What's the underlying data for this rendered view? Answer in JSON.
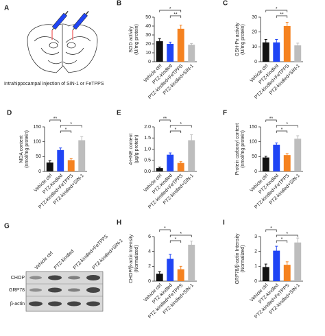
{
  "panel_a": {
    "letter": "A",
    "caption": "Intrahippocampal injection of SIN-1 or FeTPPS"
  },
  "panel_g": {
    "letter": "G",
    "lanes": [
      "Vehicle ctrl",
      "PTZ-kindled",
      "PTZ-kindled+FeTPPS",
      "PTZ-kindled+SIN-1"
    ],
    "rows": [
      "CHOP",
      "GRP78",
      "β-actin"
    ]
  },
  "chart_data": [
    {
      "type": "bar",
      "letter": "B",
      "y_label": [
        "SOD activity",
        "(U/mg protein)"
      ],
      "categories": [
        "Vehicle ctrl",
        "PTZ-kindled",
        "PTZ-kindled+FeTPPS",
        "PTZ-kindled+SIN-1"
      ],
      "values": [
        23,
        20,
        37,
        19
      ],
      "errors": [
        3,
        2,
        4,
        1.5
      ],
      "colors": [
        "#111111",
        "#2045f5",
        "#f58220",
        "#bdbdbd"
      ],
      "ylim": [
        0,
        50
      ],
      "yticks": [
        0,
        10,
        20,
        30,
        40,
        50
      ],
      "brackets": [
        {
          "label": "*",
          "from": 0,
          "to": 2
        },
        {
          "label": "**",
          "from": 1,
          "to": 2
        }
      ]
    },
    {
      "type": "bar",
      "letter": "C",
      "y_label": [
        "GSH-Px activity",
        "(U/mg protein)"
      ],
      "categories": [
        "Vehicle ctrl",
        "PTZ-kindled",
        "PTZ-kindled+FeTPPS",
        "PTZ-kindled+SIN-1"
      ],
      "values": [
        13,
        13,
        24,
        11
      ],
      "errors": [
        2,
        2,
        2.5,
        1.5
      ],
      "colors": [
        "#111111",
        "#2045f5",
        "#f58220",
        "#bdbdbd"
      ],
      "ylim": [
        0,
        30
      ],
      "yticks": [
        0,
        10,
        20,
        30
      ],
      "brackets": [
        {
          "label": "*",
          "from": 0,
          "to": 2
        },
        {
          "label": "**",
          "from": 1,
          "to": 2
        }
      ]
    },
    {
      "type": "bar",
      "letter": "D",
      "y_label": [
        "MDA content",
        "(nmol/mg protein)"
      ],
      "categories": [
        "Vehicle ctrl",
        "PTZ-kindled",
        "PTZ-kindled+FeTPPS",
        "PTZ-kindled+SIN-1"
      ],
      "values": [
        30,
        72,
        38,
        105
      ],
      "errors": [
        6,
        7,
        5,
        12
      ],
      "colors": [
        "#111111",
        "#2045f5",
        "#f58220",
        "#bdbdbd"
      ],
      "ylim": [
        0,
        150
      ],
      "yticks": [
        0,
        50,
        100,
        150
      ],
      "brackets": [
        {
          "label": "**",
          "from": 0,
          "to": 1
        },
        {
          "label": "*",
          "from": 1,
          "to": 3
        },
        {
          "label": "*",
          "from": 1,
          "to": 2
        }
      ]
    },
    {
      "type": "bar",
      "letter": "E",
      "y_label": [
        "4-HNE content",
        "(μg/g protein)"
      ],
      "categories": [
        "Vehicle ctrl",
        "PTZ-kindled",
        "PTZ-kindled+FeTPPS",
        "PTZ-kindled+SIN-1"
      ],
      "values": [
        0.15,
        0.75,
        0.38,
        1.4
      ],
      "errors": [
        0.04,
        0.08,
        0.06,
        0.25
      ],
      "colors": [
        "#111111",
        "#2045f5",
        "#f58220",
        "#bdbdbd"
      ],
      "ylim": [
        0,
        2
      ],
      "yticks": [
        {
          "value": 0,
          "label": "0.0"
        },
        0.5,
        {
          "value": 1,
          "label": "1.0"
        },
        1.5,
        {
          "value": 2,
          "label": "2.0"
        }
      ],
      "brackets": [
        {
          "label": "**",
          "from": 0,
          "to": 1
        },
        {
          "label": "*",
          "from": 1,
          "to": 3
        },
        {
          "label": "*",
          "from": 1,
          "to": 2
        }
      ]
    },
    {
      "type": "bar",
      "letter": "F",
      "y_label": [
        "Protein carbonyl content",
        "(nmol/mg protein)"
      ],
      "categories": [
        "Vehicle ctrl",
        "PTZ-kindled",
        "PTZ-kindled+FeTPPS",
        "PTZ-kindled+SIN-1"
      ],
      "values": [
        47,
        90,
        55,
        110
      ],
      "errors": [
        4,
        6,
        5,
        10
      ],
      "colors": [
        "#111111",
        "#2045f5",
        "#f58220",
        "#bdbdbd"
      ],
      "ylim": [
        0,
        150
      ],
      "yticks": [
        0,
        50,
        100,
        150
      ],
      "brackets": [
        {
          "label": "**",
          "from": 0,
          "to": 1
        },
        {
          "label": "*",
          "from": 1,
          "to": 3
        },
        {
          "label": "*",
          "from": 1,
          "to": 2
        }
      ]
    },
    {
      "type": "bar",
      "letter": "H",
      "y_label": [
        "CHOP/β-actin Intensity",
        "(Normalized)"
      ],
      "categories": [
        "Vehicle ctrl",
        "PTZ-kindled",
        "PTZ-kindled+FeTPPS",
        "PTZ-kindled+SIN-1"
      ],
      "values": [
        1,
        3,
        1.6,
        4.9
      ],
      "errors": [
        0.3,
        0.6,
        0.4,
        0.5
      ],
      "colors": [
        "#111111",
        "#2045f5",
        "#f58220",
        "#bdbdbd"
      ],
      "ylim": [
        0,
        6
      ],
      "yticks": [
        0,
        2,
        4,
        6
      ],
      "brackets": [
        {
          "label": "*",
          "from": 0,
          "to": 1
        },
        {
          "label": "*",
          "from": 1,
          "to": 3
        },
        {
          "label": "*",
          "from": 1,
          "to": 2
        }
      ]
    },
    {
      "type": "bar",
      "letter": "I",
      "y_label": [
        "GRP78/β-actin Intensity",
        "(Normalized)"
      ],
      "categories": [
        "Vehicle ctrl",
        "PTZ-kindled",
        "PTZ-kindled+FeTPPS",
        "PTZ-kindled+SIN-1"
      ],
      "values": [
        0.95,
        2.05,
        1.1,
        2.6
      ],
      "errors": [
        0.2,
        0.3,
        0.2,
        0.3
      ],
      "colors": [
        "#111111",
        "#2045f5",
        "#f58220",
        "#bdbdbd"
      ],
      "ylim": [
        0,
        3
      ],
      "yticks": [
        0,
        1,
        2,
        3
      ],
      "brackets": [
        {
          "label": "*",
          "from": 0,
          "to": 1
        },
        {
          "label": "*",
          "from": 1,
          "to": 3
        },
        {
          "label": "*",
          "from": 1,
          "to": 2
        }
      ]
    }
  ]
}
